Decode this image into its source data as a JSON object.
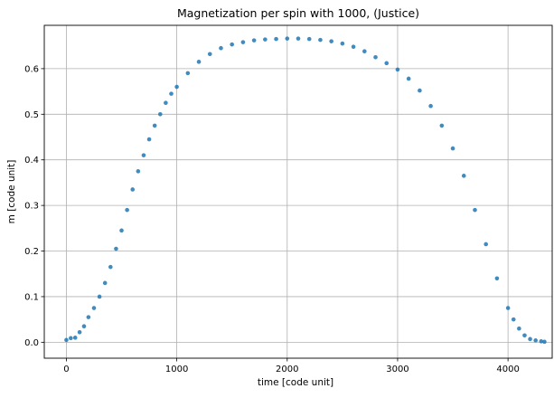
{
  "chart_data": {
    "type": "scatter",
    "title": "Magnetization per spin with 1000, (Justice)",
    "xlabel": "time [code unit]",
    "ylabel": "m [code unit]",
    "xlim": [
      -200,
      4400
    ],
    "ylim": [
      -0.035,
      0.695
    ],
    "xticks": [
      0,
      1000,
      2000,
      3000,
      4000
    ],
    "xtick_labels": [
      "0",
      "1000",
      "2000",
      "3000",
      "4000"
    ],
    "yticks": [
      0.0,
      0.1,
      0.2,
      0.3,
      0.4,
      0.5,
      0.6
    ],
    "ytick_labels": [
      "0.0",
      "0.1",
      "0.2",
      "0.3",
      "0.4",
      "0.5",
      "0.6"
    ],
    "grid": true,
    "marker_color": "#1f77b4",
    "series": [
      {
        "x": [
          0,
          40,
          80,
          120,
          160,
          200,
          250,
          300,
          350,
          400,
          450,
          500,
          550,
          600,
          650,
          700,
          750,
          800,
          850,
          900,
          950,
          1000,
          1100,
          1200,
          1300,
          1400,
          1500,
          1600,
          1700,
          1800,
          1900,
          2000,
          2100,
          2200,
          2300,
          2400,
          2500,
          2600,
          2700,
          2800,
          2900,
          3000,
          3100,
          3200,
          3300,
          3400,
          3500,
          3600,
          3700,
          3800,
          3900,
          4000,
          4050,
          4100,
          4150,
          4200,
          4250,
          4300,
          4330
        ],
        "y": [
          0.005,
          0.009,
          0.01,
          0.022,
          0.035,
          0.055,
          0.075,
          0.1,
          0.13,
          0.165,
          0.205,
          0.245,
          0.29,
          0.335,
          0.375,
          0.41,
          0.445,
          0.475,
          0.5,
          0.525,
          0.545,
          0.56,
          0.59,
          0.615,
          0.632,
          0.645,
          0.653,
          0.658,
          0.662,
          0.664,
          0.665,
          0.666,
          0.666,
          0.665,
          0.663,
          0.66,
          0.655,
          0.648,
          0.638,
          0.625,
          0.612,
          0.598,
          0.578,
          0.552,
          0.518,
          0.475,
          0.425,
          0.365,
          0.29,
          0.215,
          0.14,
          0.075,
          0.05,
          0.03,
          0.015,
          0.007,
          0.004,
          0.002,
          0.001
        ]
      }
    ]
  }
}
